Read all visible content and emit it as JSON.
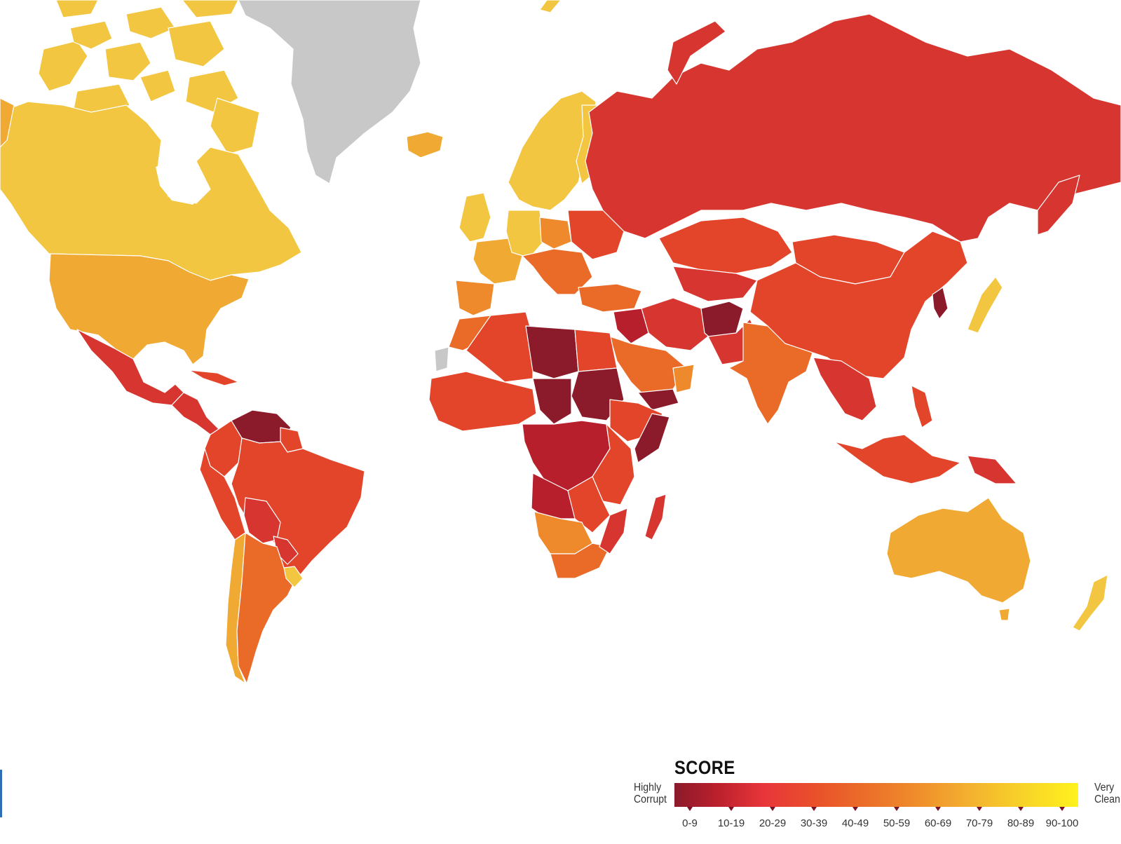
{
  "legend": {
    "title": "SCORE",
    "low_label_line1": "Highly",
    "low_label_line2": "Corrupt",
    "high_label_line1": "Very",
    "high_label_line2": "Clean",
    "bins": [
      "0-9",
      "10-19",
      "20-29",
      "30-39",
      "40-49",
      "50-59",
      "60-69",
      "70-79",
      "80-89",
      "90-100"
    ],
    "colors": [
      "#8b1a2b",
      "#b81f2c",
      "#d63530",
      "#e3452a",
      "#ea6a28",
      "#ee8a2c",
      "#f0a932",
      "#f2c641",
      "#f7de2a",
      "#fff21d"
    ]
  },
  "colors": {
    "no_data": "#c8c8c8",
    "ocean": "#ffffff",
    "border": "#ffffff"
  }
}
